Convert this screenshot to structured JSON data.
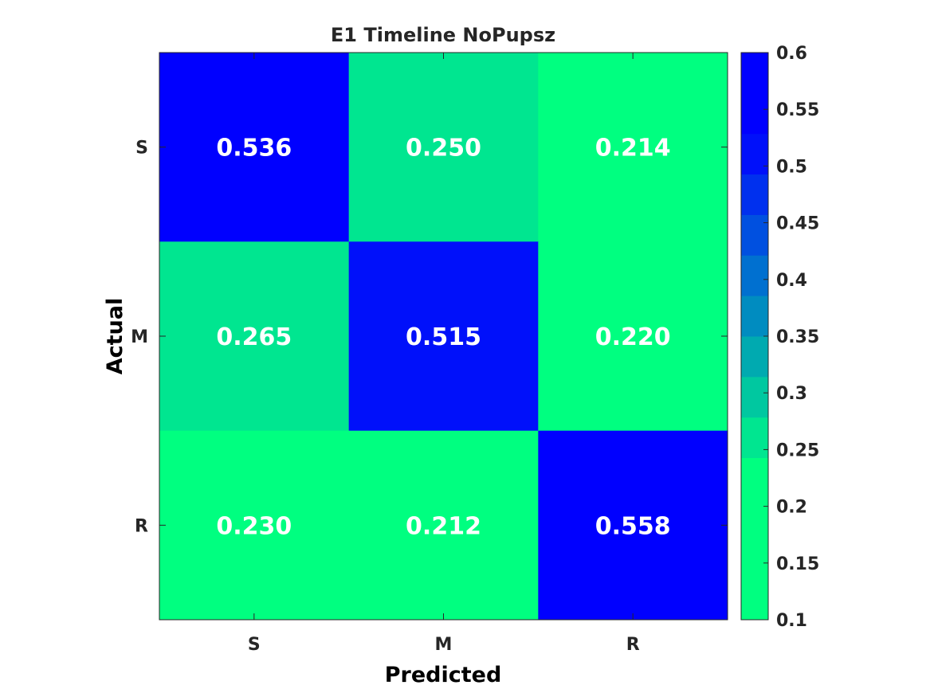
{
  "chart_data": {
    "type": "heatmap",
    "title": "E1 Timeline NoPupsz",
    "xlabel": "Predicted",
    "ylabel": "Actual",
    "x_categories": [
      "S",
      "M",
      "R"
    ],
    "y_categories": [
      "S",
      "M",
      "R"
    ],
    "values": [
      [
        0.536,
        0.25,
        0.214
      ],
      [
        0.265,
        0.515,
        0.22
      ],
      [
        0.23,
        0.212,
        0.558
      ]
    ],
    "cell_labels": [
      [
        "0.536",
        "0.250",
        "0.214"
      ],
      [
        "0.265",
        "0.515",
        "0.220"
      ],
      [
        "0.230",
        "0.212",
        "0.558"
      ]
    ],
    "colorbar": {
      "range": [
        0.1,
        0.6
      ],
      "ticks": [
        0.1,
        0.15,
        0.2,
        0.25,
        0.3,
        0.35,
        0.4,
        0.45,
        0.5,
        0.55,
        0.6
      ],
      "tick_labels": [
        "0.1",
        "0.15",
        "0.2",
        "0.25",
        "0.3",
        "0.35",
        "0.4",
        "0.45",
        "0.5",
        "0.55",
        "0.6"
      ],
      "colors": [
        "#00ff80",
        "#00ff80",
        "#00ff80",
        "#00ff80",
        "#00e690",
        "#00c8a0",
        "#00aab0",
        "#008cc0",
        "#0070d0",
        "#0050e0",
        "#0030ee",
        "#0010fa",
        "#0000ff",
        "#0000ff"
      ]
    }
  }
}
